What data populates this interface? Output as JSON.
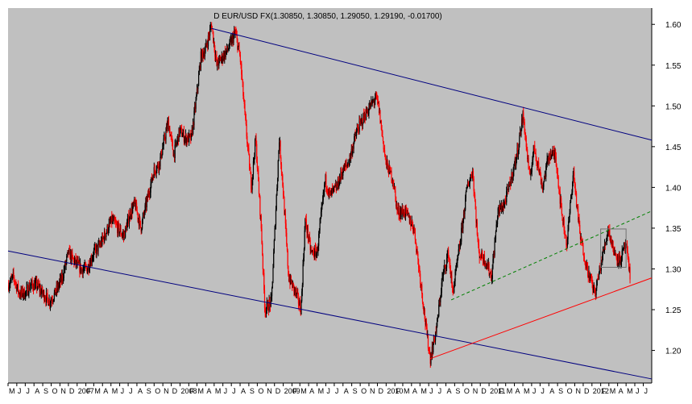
{
  "chart_data": {
    "type": "candlestick",
    "title": "D EUR/USD FX(1.30850, 1.30850, 1.29050, 1.29190, -0.01700)",
    "xlabel": "",
    "ylabel": "",
    "ylim": [
      1.16,
      1.62
    ],
    "xlim": [
      "2006-05-01",
      "2012-07-31"
    ],
    "y_ticks": [
      "1.20",
      "1.25",
      "1.30",
      "1.35",
      "1.40",
      "1.45",
      "1.50",
      "1.55",
      "1.60"
    ],
    "x_ticks": [
      {
        "label": "M",
        "date": "2006-05-01"
      },
      {
        "label": "J",
        "date": "2006-06-01"
      },
      {
        "label": "J",
        "date": "2006-07-01"
      },
      {
        "label": "A",
        "date": "2006-08-01"
      },
      {
        "label": "S",
        "date": "2006-09-01"
      },
      {
        "label": "O",
        "date": "2006-10-01"
      },
      {
        "label": "N",
        "date": "2006-11-01"
      },
      {
        "label": "D",
        "date": "2006-12-01"
      },
      {
        "label": "2007",
        "date": "2007-01-01"
      },
      {
        "label": "F",
        "date": "2007-02-01"
      },
      {
        "label": "M",
        "date": "2007-03-01"
      },
      {
        "label": "A",
        "date": "2007-04-01"
      },
      {
        "label": "M",
        "date": "2007-05-01"
      },
      {
        "label": "J",
        "date": "2007-06-01"
      },
      {
        "label": "J",
        "date": "2007-07-01"
      },
      {
        "label": "A",
        "date": "2007-08-01"
      },
      {
        "label": "S",
        "date": "2007-09-01"
      },
      {
        "label": "O",
        "date": "2007-10-01"
      },
      {
        "label": "N",
        "date": "2007-11-01"
      },
      {
        "label": "D",
        "date": "2007-12-01"
      },
      {
        "label": "2008",
        "date": "2008-01-01"
      },
      {
        "label": "F",
        "date": "2008-02-01"
      },
      {
        "label": "M",
        "date": "2008-03-01"
      },
      {
        "label": "A",
        "date": "2008-04-01"
      },
      {
        "label": "M",
        "date": "2008-05-01"
      },
      {
        "label": "J",
        "date": "2008-06-01"
      },
      {
        "label": "J",
        "date": "2008-07-01"
      },
      {
        "label": "A",
        "date": "2008-08-01"
      },
      {
        "label": "S",
        "date": "2008-09-01"
      },
      {
        "label": "O",
        "date": "2008-10-01"
      },
      {
        "label": "N",
        "date": "2008-11-01"
      },
      {
        "label": "D",
        "date": "2008-12-01"
      },
      {
        "label": "2009",
        "date": "2009-01-01"
      },
      {
        "label": "F",
        "date": "2009-02-01"
      },
      {
        "label": "M",
        "date": "2009-03-01"
      },
      {
        "label": "A",
        "date": "2009-04-01"
      },
      {
        "label": "M",
        "date": "2009-05-01"
      },
      {
        "label": "J",
        "date": "2009-06-01"
      },
      {
        "label": "J",
        "date": "2009-07-01"
      },
      {
        "label": "A",
        "date": "2009-08-01"
      },
      {
        "label": "S",
        "date": "2009-09-01"
      },
      {
        "label": "O",
        "date": "2009-10-01"
      },
      {
        "label": "N",
        "date": "2009-11-01"
      },
      {
        "label": "D",
        "date": "2009-12-01"
      },
      {
        "label": "2010",
        "date": "2010-01-01"
      },
      {
        "label": "F",
        "date": "2010-02-01"
      },
      {
        "label": "M",
        "date": "2010-03-01"
      },
      {
        "label": "A",
        "date": "2010-04-01"
      },
      {
        "label": "M",
        "date": "2010-05-01"
      },
      {
        "label": "J",
        "date": "2010-06-01"
      },
      {
        "label": "J",
        "date": "2010-07-01"
      },
      {
        "label": "A",
        "date": "2010-08-01"
      },
      {
        "label": "S",
        "date": "2010-09-01"
      },
      {
        "label": "O",
        "date": "2010-10-01"
      },
      {
        "label": "N",
        "date": "2010-11-01"
      },
      {
        "label": "D",
        "date": "2010-12-01"
      },
      {
        "label": "2011",
        "date": "2011-01-01"
      },
      {
        "label": "F",
        "date": "2011-02-01"
      },
      {
        "label": "M",
        "date": "2011-03-01"
      },
      {
        "label": "A",
        "date": "2011-04-01"
      },
      {
        "label": "M",
        "date": "2011-05-01"
      },
      {
        "label": "J",
        "date": "2011-06-01"
      },
      {
        "label": "J",
        "date": "2011-07-01"
      },
      {
        "label": "A",
        "date": "2011-08-01"
      },
      {
        "label": "S",
        "date": "2011-09-01"
      },
      {
        "label": "O",
        "date": "2011-10-01"
      },
      {
        "label": "N",
        "date": "2011-11-01"
      },
      {
        "label": "D",
        "date": "2011-12-01"
      },
      {
        "label": "2012",
        "date": "2012-01-01"
      },
      {
        "label": "F",
        "date": "2012-02-01"
      },
      {
        "label": "M",
        "date": "2012-03-01"
      },
      {
        "label": "A",
        "date": "2012-04-01"
      },
      {
        "label": "M",
        "date": "2012-05-01"
      },
      {
        "label": "J",
        "date": "2012-06-01"
      },
      {
        "label": "J",
        "date": "2012-07-01"
      }
    ],
    "price_path": [
      [
        "2006-05-01",
        1.28
      ],
      [
        "2006-05-20",
        1.29
      ],
      [
        "2006-06-10",
        1.27
      ],
      [
        "2006-07-01",
        1.27
      ],
      [
        "2006-07-20",
        1.28
      ],
      [
        "2006-08-10",
        1.28
      ],
      [
        "2006-09-01",
        1.27
      ],
      [
        "2006-09-25",
        1.26
      ],
      [
        "2006-10-15",
        1.27
      ],
      [
        "2006-11-10",
        1.29
      ],
      [
        "2006-12-01",
        1.32
      ],
      [
        "2006-12-20",
        1.31
      ],
      [
        "2007-01-15",
        1.3
      ],
      [
        "2007-02-05",
        1.3
      ],
      [
        "2007-03-01",
        1.32
      ],
      [
        "2007-03-25",
        1.33
      ],
      [
        "2007-04-20",
        1.35
      ],
      [
        "2007-05-05",
        1.36
      ],
      [
        "2007-05-25",
        1.35
      ],
      [
        "2007-06-15",
        1.34
      ],
      [
        "2007-07-10",
        1.37
      ],
      [
        "2007-07-25",
        1.38
      ],
      [
        "2007-08-15",
        1.35
      ],
      [
        "2007-09-10",
        1.39
      ],
      [
        "2007-09-30",
        1.42
      ],
      [
        "2007-10-20",
        1.43
      ],
      [
        "2007-11-20",
        1.48
      ],
      [
        "2007-12-10",
        1.44
      ],
      [
        "2007-12-31",
        1.47
      ],
      [
        "2008-01-20",
        1.46
      ],
      [
        "2008-02-10",
        1.46
      ],
      [
        "2008-02-28",
        1.51
      ],
      [
        "2008-03-15",
        1.56
      ],
      [
        "2008-04-01",
        1.57
      ],
      [
        "2008-04-22",
        1.6
      ],
      [
        "2008-05-10",
        1.55
      ],
      [
        "2008-05-30",
        1.56
      ],
      [
        "2008-06-20",
        1.57
      ],
      [
        "2008-07-15",
        1.59
      ],
      [
        "2008-08-01",
        1.56
      ],
      [
        "2008-08-20",
        1.48
      ],
      [
        "2008-09-10",
        1.4
      ],
      [
        "2008-09-25",
        1.46
      ],
      [
        "2008-10-15",
        1.35
      ],
      [
        "2008-10-28",
        1.25
      ],
      [
        "2008-11-20",
        1.26
      ],
      [
        "2008-12-18",
        1.46
      ],
      [
        "2008-12-31",
        1.4
      ],
      [
        "2009-01-20",
        1.29
      ],
      [
        "2009-02-15",
        1.27
      ],
      [
        "2009-03-05",
        1.25
      ],
      [
        "2009-03-20",
        1.36
      ],
      [
        "2009-04-10",
        1.32
      ],
      [
        "2009-05-01",
        1.32
      ],
      [
        "2009-05-30",
        1.41
      ],
      [
        "2009-06-15",
        1.39
      ],
      [
        "2009-07-10",
        1.4
      ],
      [
        "2009-07-30",
        1.42
      ],
      [
        "2009-08-20",
        1.43
      ],
      [
        "2009-09-20",
        1.47
      ],
      [
        "2009-10-20",
        1.49
      ],
      [
        "2009-11-25",
        1.51
      ],
      [
        "2009-12-05",
        1.5
      ],
      [
        "2009-12-31",
        1.43
      ],
      [
        "2010-01-25",
        1.41
      ],
      [
        "2010-02-10",
        1.37
      ],
      [
        "2010-03-10",
        1.37
      ],
      [
        "2010-04-10",
        1.35
      ],
      [
        "2010-05-05",
        1.28
      ],
      [
        "2010-05-25",
        1.22
      ],
      [
        "2010-06-07",
        1.19
      ],
      [
        "2010-06-30",
        1.23
      ],
      [
        "2010-07-20",
        1.29
      ],
      [
        "2010-08-10",
        1.32
      ],
      [
        "2010-08-25",
        1.27
      ],
      [
        "2010-09-20",
        1.33
      ],
      [
        "2010-10-15",
        1.4
      ],
      [
        "2010-11-04",
        1.42
      ],
      [
        "2010-11-25",
        1.32
      ],
      [
        "2010-12-20",
        1.31
      ],
      [
        "2011-01-10",
        1.29
      ],
      [
        "2011-02-01",
        1.37
      ],
      [
        "2011-02-25",
        1.38
      ],
      [
        "2011-03-20",
        1.41
      ],
      [
        "2011-04-10",
        1.44
      ],
      [
        "2011-05-02",
        1.49
      ],
      [
        "2011-05-25",
        1.41
      ],
      [
        "2011-06-10",
        1.45
      ],
      [
        "2011-07-10",
        1.4
      ],
      [
        "2011-08-01",
        1.44
      ],
      [
        "2011-08-25",
        1.44
      ],
      [
        "2011-09-15",
        1.37
      ],
      [
        "2011-10-04",
        1.33
      ],
      [
        "2011-10-27",
        1.42
      ],
      [
        "2011-11-20",
        1.34
      ],
      [
        "2011-12-15",
        1.3
      ],
      [
        "2012-01-12",
        1.27
      ],
      [
        "2012-02-10",
        1.32
      ],
      [
        "2012-02-28",
        1.35
      ],
      [
        "2012-03-20",
        1.32
      ],
      [
        "2012-04-10",
        1.31
      ],
      [
        "2012-04-30",
        1.33
      ],
      [
        "2012-05-15",
        1.29
      ]
    ],
    "trend_lines": [
      {
        "style": "solid",
        "color": "#00007f",
        "from": [
          "2008-04-22",
          1.595
        ],
        "to": [
          "2012-07-31",
          1.458
        ]
      },
      {
        "style": "solid",
        "color": "#00007f",
        "from": [
          "2006-05-01",
          1.322
        ],
        "to": [
          "2012-07-31",
          1.165
        ]
      },
      {
        "style": "solid",
        "color": "#ff0000",
        "from": [
          "2010-06-07",
          1.19
        ],
        "to": [
          "2012-07-31",
          1.289
        ]
      },
      {
        "style": "dashed",
        "color": "#008000",
        "from": [
          "2010-08-20",
          1.262
        ],
        "to": [
          "2012-07-31",
          1.371
        ]
      }
    ],
    "highlight_box": {
      "from": [
        "2012-02-01",
        1.349
      ],
      "to": [
        "2012-05-01",
        1.302
      ]
    },
    "colors": {
      "background": "#c0c0c0",
      "up": "#000000",
      "down": "#ff0000"
    },
    "grid": false
  }
}
